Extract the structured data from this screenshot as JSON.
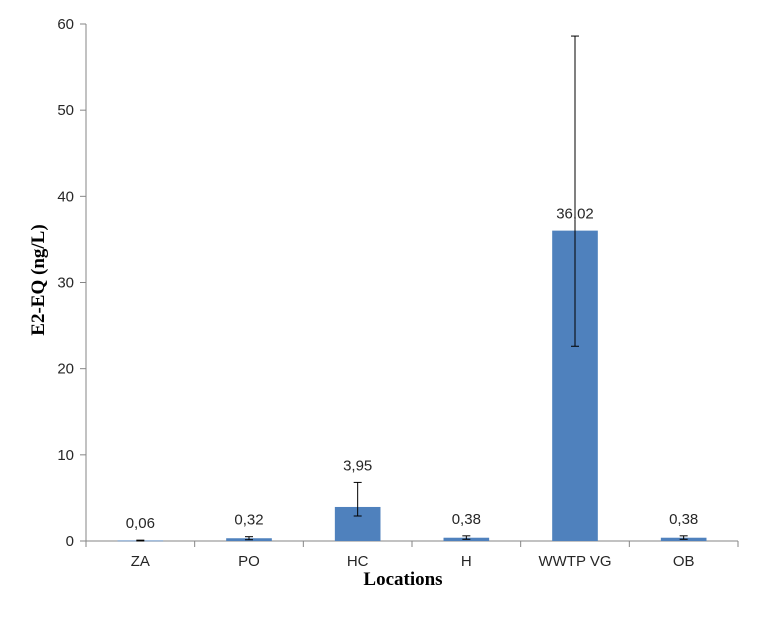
{
  "chart_data": {
    "type": "bar",
    "title": "",
    "xlabel": "Locations",
    "ylabel": "E2-EQ (ng/L)",
    "categories": [
      "ZA",
      "PO",
      "HC",
      "H",
      "WWTP VG",
      "OB"
    ],
    "values": [
      0.06,
      0.32,
      3.95,
      0.38,
      36.02,
      0.38
    ],
    "value_labels": [
      "0,06",
      "0,32",
      "3,95",
      "0,38",
      "36,02",
      "0,38"
    ],
    "error_low": [
      0.0,
      0.15,
      2.9,
      0.2,
      22.6,
      0.2
    ],
    "error_high": [
      0.1,
      0.5,
      6.8,
      0.6,
      58.6,
      0.6
    ],
    "ylim": [
      0,
      60
    ],
    "yticks": [
      0,
      10,
      20,
      30,
      40,
      50,
      60
    ],
    "grid": false,
    "legend": "none",
    "bar_color": "#4F81BD"
  }
}
